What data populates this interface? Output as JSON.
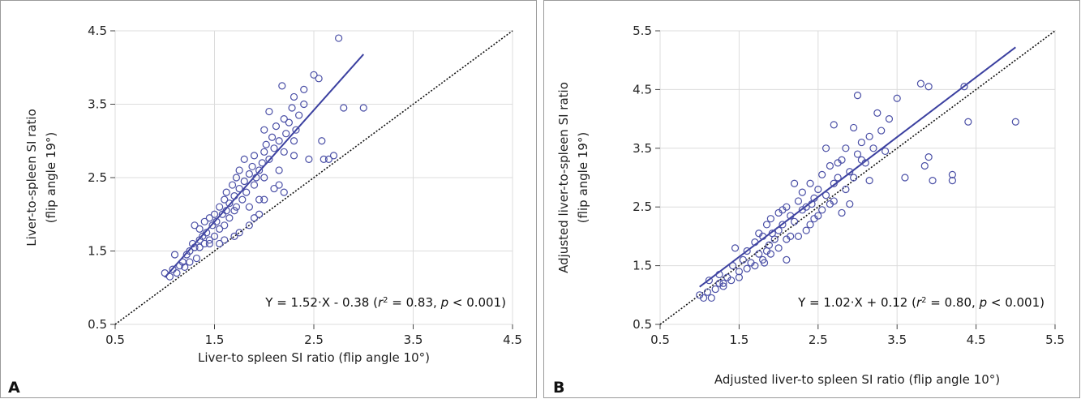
{
  "figure": {
    "colors": {
      "points": "#4a4fa6",
      "fit_line": "#3b40a0",
      "identity_line": "#111111",
      "grid": "#dcdcdc",
      "frame": "#9a9a9a"
    }
  },
  "panels": [
    {
      "letter": "A",
      "xlabel": "Liver-to spleen SI ratio (flip angle 10°)",
      "ylabel_line1": "Liver-to-spleen SI ratio",
      "ylabel_line2": "(flip angle 19°)",
      "equation": {
        "main": "Y = 1.52·X - 0.38 (",
        "r": "r",
        "sup": "2",
        "mid": " = 0.83, ",
        "p": "p",
        "tail": " < 0.001)"
      },
      "xticks": [
        "0.5",
        "1.5",
        "2.5",
        "3.5",
        "4.5"
      ],
      "yticks": [
        "0.5",
        "1.5",
        "2.5",
        "3.5",
        "4.5"
      ]
    },
    {
      "letter": "B",
      "xlabel": "Adjusted liver-to spleen SI ratio (flip angle 10°)",
      "ylabel_line1": "Adjusted liver-to-spleen SI ratio",
      "ylabel_line2": "(flip angle 19°)",
      "equation": {
        "main": "Y = 1.02·X + 0.12 (",
        "r": "r",
        "sup": "2",
        "mid": " = 0.80, ",
        "p": "p",
        "tail": " < 0.001)"
      },
      "xticks": [
        "0.5",
        "1.5",
        "2.5",
        "3.5",
        "4.5",
        "5.5"
      ],
      "yticks": [
        "0.5",
        "1.5",
        "2.5",
        "3.5",
        "4.5",
        "5.5"
      ]
    }
  ],
  "chart_data": [
    {
      "type": "scatter",
      "xlabel": "Liver-to spleen SI ratio (flip angle 10°)",
      "ylabel": "Liver-to-spleen SI ratio (flip angle 19°)",
      "xlim": [
        0.5,
        4.5
      ],
      "ylim": [
        0.5,
        4.5
      ],
      "grid": true,
      "regression": {
        "slope": 1.52,
        "intercept": -0.38,
        "x_range": [
          1.0,
          3.0
        ]
      },
      "identity_line": true,
      "points": [
        [
          1.0,
          1.2
        ],
        [
          1.05,
          1.15
        ],
        [
          1.08,
          1.25
        ],
        [
          1.1,
          1.45
        ],
        [
          1.12,
          1.2
        ],
        [
          1.15,
          1.3
        ],
        [
          1.18,
          1.35
        ],
        [
          1.2,
          1.28
        ],
        [
          1.22,
          1.45
        ],
        [
          1.25,
          1.5
        ],
        [
          1.25,
          1.35
        ],
        [
          1.28,
          1.6
        ],
        [
          1.3,
          1.55
        ],
        [
          1.3,
          1.85
        ],
        [
          1.32,
          1.4
        ],
        [
          1.35,
          1.65
        ],
        [
          1.35,
          1.8
        ],
        [
          1.38,
          1.7
        ],
        [
          1.4,
          1.9
        ],
        [
          1.4,
          1.6
        ],
        [
          1.42,
          1.75
        ],
        [
          1.45,
          1.95
        ],
        [
          1.45,
          1.65
        ],
        [
          1.48,
          1.85
        ],
        [
          1.5,
          2.0
        ],
        [
          1.5,
          1.7
        ],
        [
          1.52,
          1.9
        ],
        [
          1.55,
          2.1
        ],
        [
          1.55,
          1.8
        ],
        [
          1.58,
          2.0
        ],
        [
          1.6,
          2.2
        ],
        [
          1.6,
          1.85
        ],
        [
          1.62,
          2.3
        ],
        [
          1.62,
          2.05
        ],
        [
          1.65,
          2.15
        ],
        [
          1.65,
          1.95
        ],
        [
          1.68,
          2.4
        ],
        [
          1.7,
          2.25
        ],
        [
          1.7,
          2.05
        ],
        [
          1.72,
          2.5
        ],
        [
          1.72,
          2.1
        ],
        [
          1.75,
          2.35
        ],
        [
          1.75,
          2.6
        ],
        [
          1.78,
          2.2
        ],
        [
          1.8,
          2.45
        ],
        [
          1.8,
          2.75
        ],
        [
          1.82,
          2.3
        ],
        [
          1.85,
          2.55
        ],
        [
          1.85,
          2.1
        ],
        [
          1.88,
          2.65
        ],
        [
          1.9,
          2.4
        ],
        [
          1.9,
          2.8
        ],
        [
          1.92,
          2.5
        ],
        [
          1.95,
          2.6
        ],
        [
          1.95,
          2.2
        ],
        [
          1.98,
          2.7
        ],
        [
          2.0,
          2.85
        ],
        [
          2.0,
          2.5
        ],
        [
          2.0,
          3.15
        ],
        [
          2.02,
          2.95
        ],
        [
          2.05,
          2.75
        ],
        [
          2.05,
          3.4
        ],
        [
          2.08,
          3.05
        ],
        [
          2.1,
          2.9
        ],
        [
          2.1,
          2.35
        ],
        [
          2.12,
          3.2
        ],
        [
          2.15,
          3.0
        ],
        [
          2.15,
          2.6
        ],
        [
          2.18,
          3.75
        ],
        [
          2.2,
          3.3
        ],
        [
          2.2,
          2.85
        ],
        [
          2.22,
          3.1
        ],
        [
          2.25,
          3.25
        ],
        [
          2.28,
          3.45
        ],
        [
          2.3,
          3.0
        ],
        [
          2.3,
          3.6
        ],
        [
          2.32,
          3.15
        ],
        [
          2.35,
          3.35
        ],
        [
          2.4,
          3.7
        ],
        [
          2.4,
          3.5
        ],
        [
          2.45,
          2.75
        ],
        [
          2.5,
          3.9
        ],
        [
          2.55,
          3.85
        ],
        [
          2.58,
          3.0
        ],
        [
          2.6,
          2.75
        ],
        [
          2.65,
          2.75
        ],
        [
          2.7,
          2.8
        ],
        [
          2.75,
          4.4
        ],
        [
          2.8,
          3.45
        ],
        [
          3.0,
          3.45
        ],
        [
          1.6,
          1.65
        ],
        [
          1.7,
          1.7
        ],
        [
          1.9,
          1.95
        ],
        [
          2.0,
          2.2
        ],
        [
          2.15,
          2.4
        ],
        [
          2.3,
          2.8
        ],
        [
          2.2,
          2.3
        ],
        [
          1.55,
          1.6
        ],
        [
          1.45,
          1.6
        ],
        [
          1.35,
          1.55
        ],
        [
          1.75,
          1.75
        ],
        [
          1.85,
          1.85
        ],
        [
          1.95,
          2.0
        ]
      ]
    },
    {
      "type": "scatter",
      "xlabel": "Adjusted liver-to spleen SI ratio (flip angle 10°)",
      "ylabel": "Adjusted liver-to-spleen SI ratio (flip angle 19°)",
      "xlim": [
        0.5,
        5.5
      ],
      "ylim": [
        0.5,
        5.5
      ],
      "grid": true,
      "regression": {
        "slope": 1.02,
        "intercept": 0.12,
        "x_range": [
          1.0,
          5.0
        ]
      },
      "identity_line": true,
      "points": [
        [
          1.0,
          1.0
        ],
        [
          1.05,
          0.95
        ],
        [
          1.1,
          1.05
        ],
        [
          1.12,
          1.25
        ],
        [
          1.15,
          0.95
        ],
        [
          1.2,
          1.1
        ],
        [
          1.25,
          1.2
        ],
        [
          1.3,
          1.15
        ],
        [
          1.35,
          1.3
        ],
        [
          1.4,
          1.25
        ],
        [
          1.42,
          1.5
        ],
        [
          1.45,
          1.8
        ],
        [
          1.5,
          1.4
        ],
        [
          1.55,
          1.6
        ],
        [
          1.6,
          1.75
        ],
        [
          1.65,
          1.55
        ],
        [
          1.7,
          1.9
        ],
        [
          1.75,
          1.7
        ],
        [
          1.8,
          2.0
        ],
        [
          1.82,
          1.55
        ],
        [
          1.85,
          2.2
        ],
        [
          1.88,
          1.85
        ],
        [
          1.9,
          2.3
        ],
        [
          1.92,
          2.05
        ],
        [
          1.95,
          1.95
        ],
        [
          2.0,
          2.1
        ],
        [
          2.0,
          2.4
        ],
        [
          2.05,
          2.2
        ],
        [
          2.1,
          1.6
        ],
        [
          2.1,
          2.5
        ],
        [
          2.15,
          2.35
        ],
        [
          2.2,
          2.25
        ],
        [
          2.2,
          2.9
        ],
        [
          2.25,
          2.6
        ],
        [
          2.3,
          2.45
        ],
        [
          2.3,
          2.75
        ],
        [
          2.35,
          2.1
        ],
        [
          2.4,
          2.9
        ],
        [
          2.42,
          2.55
        ],
        [
          2.45,
          2.65
        ],
        [
          2.5,
          2.8
        ],
        [
          2.5,
          2.35
        ],
        [
          2.55,
          3.05
        ],
        [
          2.6,
          2.7
        ],
        [
          2.6,
          3.5
        ],
        [
          2.65,
          3.2
        ],
        [
          2.7,
          2.9
        ],
        [
          2.7,
          3.9
        ],
        [
          2.75,
          3.0
        ],
        [
          2.8,
          3.3
        ],
        [
          2.8,
          2.4
        ],
        [
          2.85,
          3.5
        ],
        [
          2.9,
          3.1
        ],
        [
          2.9,
          2.55
        ],
        [
          2.95,
          3.85
        ],
        [
          3.0,
          3.4
        ],
        [
          3.0,
          4.4
        ],
        [
          3.05,
          3.6
        ],
        [
          3.1,
          3.25
        ],
        [
          3.15,
          3.7
        ],
        [
          3.2,
          3.5
        ],
        [
          3.25,
          4.1
        ],
        [
          3.3,
          3.8
        ],
        [
          3.35,
          3.45
        ],
        [
          3.4,
          4.0
        ],
        [
          3.5,
          4.35
        ],
        [
          3.6,
          3.0
        ],
        [
          3.8,
          4.6
        ],
        [
          3.85,
          3.2
        ],
        [
          3.9,
          4.55
        ],
        [
          3.9,
          3.35
        ],
        [
          3.95,
          2.95
        ],
        [
          4.2,
          3.05
        ],
        [
          4.2,
          2.95
        ],
        [
          4.35,
          4.55
        ],
        [
          4.4,
          3.95
        ],
        [
          5.0,
          3.95
        ],
        [
          1.6,
          1.45
        ],
        [
          1.7,
          1.5
        ],
        [
          1.8,
          1.6
        ],
        [
          1.9,
          1.7
        ],
        [
          2.0,
          1.8
        ],
        [
          2.1,
          1.95
        ],
        [
          2.25,
          2.0
        ],
        [
          2.4,
          2.2
        ],
        [
          2.55,
          2.45
        ],
        [
          2.7,
          2.6
        ],
        [
          2.85,
          2.8
        ],
        [
          1.5,
          1.3
        ],
        [
          1.3,
          1.2
        ],
        [
          1.25,
          1.35
        ],
        [
          1.75,
          2.05
        ],
        [
          1.85,
          1.75
        ],
        [
          2.05,
          2.45
        ],
        [
          2.15,
          2.0
        ],
        [
          2.35,
          2.5
        ],
        [
          2.45,
          2.3
        ],
        [
          2.65,
          2.55
        ],
        [
          2.75,
          3.25
        ],
        [
          2.95,
          3.0
        ],
        [
          3.05,
          3.3
        ],
        [
          3.15,
          2.95
        ]
      ]
    }
  ]
}
